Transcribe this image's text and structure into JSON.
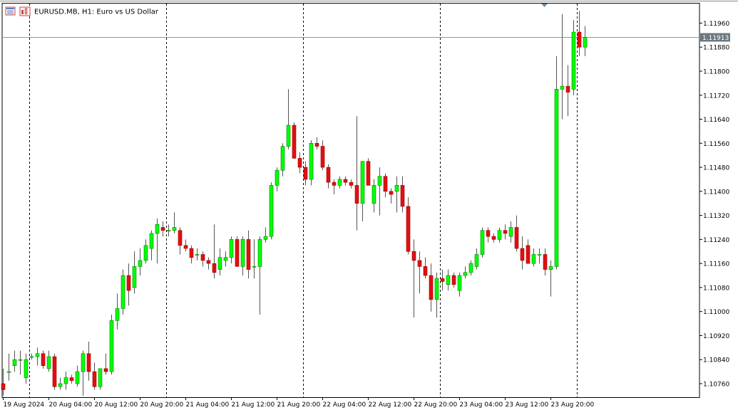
{
  "header": {
    "symbol_title": "EURUSD.MB, H1:  Euro vs US Dollar",
    "icons": [
      "chart-window-icon",
      "indicator-icon"
    ]
  },
  "colors": {
    "bull": "#00ff00",
    "bear": "#e01010",
    "wick": "#555555",
    "price_line": "#8a9aa0",
    "price_label_bg": "#6b7880",
    "separator": "#000000",
    "axis": "#000000"
  },
  "chart_data": {
    "type": "candlestick",
    "symbol": "EURUSD.MB",
    "timeframe": "H1",
    "current_price": "1.11913",
    "ylim": [
      1.10715,
      1.12025
    ],
    "y_ticks": [
      "1.11960",
      "1.11880",
      "1.11800",
      "1.11720",
      "1.11640",
      "1.11560",
      "1.11480",
      "1.11400",
      "1.11320",
      "1.11240",
      "1.11160",
      "1.11080",
      "1.11000",
      "1.10920",
      "1.10840",
      "1.10760"
    ],
    "x_ticks": [
      {
        "label": "19 Aug 2024",
        "index": 0
      },
      {
        "label": "20 Aug 04:00",
        "index": 8
      },
      {
        "label": "20 Aug 12:00",
        "index": 16
      },
      {
        "label": "20 Aug 20:00",
        "index": 24
      },
      {
        "label": "21 Aug 04:00",
        "index": 32
      },
      {
        "label": "21 Aug 12:00",
        "index": 40
      },
      {
        "label": "21 Aug 20:00",
        "index": 48
      },
      {
        "label": "22 Aug 04:00",
        "index": 56
      },
      {
        "label": "22 Aug 12:00",
        "index": 64
      },
      {
        "label": "22 Aug 20:00",
        "index": 72
      },
      {
        "label": "23 Aug 04:00",
        "index": 80
      },
      {
        "label": "23 Aug 12:00",
        "index": 88
      },
      {
        "label": "23 Aug 20:00",
        "index": 96
      }
    ],
    "day_separators": [
      4,
      28,
      52,
      76,
      100
    ],
    "candles": [
      [
        1.1076,
        1.1081,
        1.1072,
        1.1074
      ],
      [
        1.108,
        1.1086,
        1.1077,
        1.108
      ],
      [
        1.1082,
        1.1087,
        1.108,
        1.1084
      ],
      [
        1.1084,
        1.1087,
        1.1079,
        1.1084
      ],
      [
        1.1078,
        1.1086,
        1.1076,
        1.1084
      ],
      [
        1.1085,
        1.1086,
        1.1084,
        1.1085
      ],
      [
        1.1085,
        1.1088,
        1.1082,
        1.1086
      ],
      [
        1.1086,
        1.1087,
        1.1081,
        1.1082
      ],
      [
        1.1081,
        1.1087,
        1.108,
        1.1085
      ],
      [
        1.1085,
        1.1086,
        1.1074,
        1.1075
      ],
      [
        1.1075,
        1.1078,
        1.1074,
        1.1076
      ],
      [
        1.1076,
        1.108,
        1.1074,
        1.1078
      ],
      [
        1.1078,
        1.1079,
        1.1076,
        1.1077
      ],
      [
        1.1076,
        1.1082,
        1.1075,
        1.108
      ],
      [
        1.108,
        1.1087,
        1.1072,
        1.1086
      ],
      [
        1.1086,
        1.109,
        1.1077,
        1.108
      ],
      [
        1.108,
        1.1083,
        1.1074,
        1.1075
      ],
      [
        1.1075,
        1.1081,
        1.1074,
        1.1081
      ],
      [
        1.1081,
        1.1086,
        1.1079,
        1.108
      ],
      [
        1.108,
        1.1099,
        1.1079,
        1.1097
      ],
      [
        1.1097,
        1.1106,
        1.1094,
        1.1101
      ],
      [
        1.1101,
        1.1114,
        1.1099,
        1.1112
      ],
      [
        1.1112,
        1.1116,
        1.1102,
        1.1107
      ],
      [
        1.1108,
        1.112,
        1.1106,
        1.1115
      ],
      [
        1.1115,
        1.1121,
        1.1112,
        1.1117
      ],
      [
        1.1117,
        1.1124,
        1.1116,
        1.1122
      ],
      [
        1.1121,
        1.1127,
        1.1117,
        1.1126
      ],
      [
        1.1126,
        1.1131,
        1.1116,
        1.1129
      ],
      [
        1.1128,
        1.113,
        1.1125,
        1.1127
      ],
      [
        1.1127,
        1.1129,
        1.1125,
        1.1127
      ],
      [
        1.1127,
        1.1133,
        1.1126,
        1.1128
      ],
      [
        1.1127,
        1.1128,
        1.1119,
        1.1122
      ],
      [
        1.1122,
        1.1124,
        1.112,
        1.1121
      ],
      [
        1.1121,
        1.1122,
        1.1116,
        1.1118
      ],
      [
        1.1119,
        1.1121,
        1.1117,
        1.1119
      ],
      [
        1.1119,
        1.112,
        1.1115,
        1.1117
      ],
      [
        1.1117,
        1.1118,
        1.1114,
        1.1116
      ],
      [
        1.1116,
        1.1129,
        1.1111,
        1.1113
      ],
      [
        1.1114,
        1.1121,
        1.1112,
        1.1118
      ],
      [
        1.1117,
        1.112,
        1.1115,
        1.1118
      ],
      [
        1.1118,
        1.1125,
        1.1116,
        1.1124
      ],
      [
        1.1124,
        1.1125,
        1.1115,
        1.1115
      ],
      [
        1.1115,
        1.1125,
        1.1112,
        1.1124
      ],
      [
        1.1124,
        1.1127,
        1.1111,
        1.1114
      ],
      [
        1.1115,
        1.1124,
        1.1111,
        1.1115
      ],
      [
        1.1115,
        1.1125,
        1.1099,
        1.1124
      ],
      [
        1.1124,
        1.1128,
        1.1123,
        1.1125
      ],
      [
        1.1125,
        1.1143,
        1.1124,
        1.1142
      ],
      [
        1.1142,
        1.1148,
        1.114,
        1.1147
      ],
      [
        1.1147,
        1.1156,
        1.1145,
        1.1155
      ],
      [
        1.1155,
        1.1174,
        1.1154,
        1.1162
      ],
      [
        1.1162,
        1.1163,
        1.1151,
        1.1151
      ],
      [
        1.1151,
        1.1153,
        1.1146,
        1.1148
      ],
      [
        1.1148,
        1.115,
        1.1142,
        1.1144
      ],
      [
        1.1144,
        1.1157,
        1.1142,
        1.1156
      ],
      [
        1.1156,
        1.1158,
        1.1154,
        1.1155
      ],
      [
        1.1155,
        1.1157,
        1.1147,
        1.1148
      ],
      [
        1.1148,
        1.1149,
        1.1141,
        1.1143
      ],
      [
        1.1143,
        1.1144,
        1.1139,
        1.1142
      ],
      [
        1.1142,
        1.1145,
        1.1141,
        1.1144
      ],
      [
        1.1144,
        1.1145,
        1.1142,
        1.1143
      ],
      [
        1.1143,
        1.1144,
        1.1141,
        1.1142
      ],
      [
        1.1142,
        1.1165,
        1.1127,
        1.1136
      ],
      [
        1.1136,
        1.115,
        1.113,
        1.115
      ],
      [
        1.115,
        1.1151,
        1.1142,
        1.1142
      ],
      [
        1.1136,
        1.1144,
        1.1133,
        1.1142
      ],
      [
        1.1142,
        1.1148,
        1.1132,
        1.1145
      ],
      [
        1.1145,
        1.1146,
        1.1138,
        1.114
      ],
      [
        1.114,
        1.1141,
        1.1136,
        1.1139
      ],
      [
        1.114,
        1.1145,
        1.1133,
        1.1142
      ],
      [
        1.1142,
        1.1145,
        1.1133,
        1.1135
      ],
      [
        1.1135,
        1.1138,
        1.1119,
        1.112
      ],
      [
        1.112,
        1.1124,
        1.1098,
        1.1117
      ],
      [
        1.1117,
        1.112,
        1.1106,
        1.1115
      ],
      [
        1.1115,
        1.1118,
        1.1111,
        1.1112
      ],
      [
        1.1112,
        1.1116,
        1.11,
        1.1104
      ],
      [
        1.1104,
        1.1113,
        1.1098,
        1.1111
      ],
      [
        1.1111,
        1.1114,
        1.1107,
        1.111
      ],
      [
        1.1109,
        1.1114,
        1.1107,
        1.1112
      ],
      [
        1.1112,
        1.1113,
        1.1108,
        1.1109
      ],
      [
        1.1107,
        1.1113,
        1.1105,
        1.1112
      ],
      [
        1.1112,
        1.1115,
        1.1111,
        1.1113
      ],
      [
        1.1113,
        1.1117,
        1.1112,
        1.1116
      ],
      [
        1.1115,
        1.1121,
        1.1114,
        1.1119
      ],
      [
        1.1119,
        1.1128,
        1.1118,
        1.1127
      ],
      [
        1.1127,
        1.1128,
        1.1123,
        1.1125
      ],
      [
        1.1125,
        1.1126,
        1.1123,
        1.1124
      ],
      [
        1.1124,
        1.1128,
        1.1123,
        1.1127
      ],
      [
        1.1127,
        1.1129,
        1.1124,
        1.1126
      ],
      [
        1.1125,
        1.113,
        1.1123,
        1.1128
      ],
      [
        1.1128,
        1.1132,
        1.112,
        1.1121
      ],
      [
        1.1121,
        1.1125,
        1.1114,
        1.1117
      ],
      [
        1.1122,
        1.1124,
        1.1116,
        1.1116
      ],
      [
        1.1116,
        1.1121,
        1.1115,
        1.1119
      ],
      [
        1.1119,
        1.1121,
        1.1116,
        1.1119
      ],
      [
        1.1119,
        1.1121,
        1.1112,
        1.1114
      ],
      [
        1.1114,
        1.1117,
        1.1105,
        1.1115
      ],
      [
        1.1115,
        1.1185,
        1.1114,
        1.1174
      ],
      [
        1.1174,
        1.1199,
        1.1164,
        1.1175
      ],
      [
        1.1175,
        1.1182,
        1.1165,
        1.1173
      ],
      [
        1.1174,
        1.1197,
        1.1172,
        1.1193
      ],
      [
        1.1193,
        1.12,
        1.1185,
        1.1188
      ],
      [
        1.1188,
        1.1195,
        1.1185,
        1.11913
      ]
    ]
  }
}
